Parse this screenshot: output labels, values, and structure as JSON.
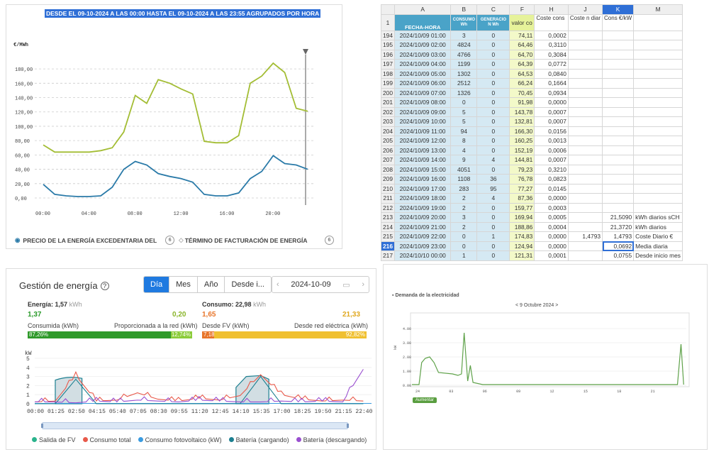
{
  "p1": {
    "title": "DESDE EL 09-10-2024 A LAS 00:00 HASTA EL 09-10-2024 A LAS 23:55 AGRUPADOS POR HORA",
    "unit": "€/MWh",
    "yticks": [
      "180,00",
      "160,00",
      "140,00",
      "120,00",
      "100,00",
      "80,00",
      "60,00",
      "40,00",
      "20,00",
      "0,00"
    ],
    "xticks": [
      "00:00",
      "04:00",
      "08:00",
      "12:00",
      "16:00",
      "20:00"
    ],
    "legend1": "PRECIO DE LA ENERGÍA EXCEDENTARIA DEL",
    "legend1_num": "6",
    "legend2": "TÉRMINO DE FACTURACIÓN DE ENERGÍA",
    "legend2_num": "6",
    "colors": {
      "green": "#a3bd34",
      "blue": "#2a7aa8"
    }
  },
  "chart_data": [
    {
      "type": "line",
      "title": "DESDE EL 09-10-2024 A LAS 00:00 HASTA EL 09-10-2024 A LAS 23:55 AGRUPADOS POR HORA",
      "ylabel": "€/MWh",
      "ylim": [
        0,
        190
      ],
      "x": [
        "00:00",
        "01:00",
        "02:00",
        "03:00",
        "04:00",
        "05:00",
        "06:00",
        "07:00",
        "08:00",
        "09:00",
        "10:00",
        "11:00",
        "12:00",
        "13:00",
        "14:00",
        "15:00",
        "16:00",
        "17:00",
        "18:00",
        "19:00",
        "20:00",
        "21:00",
        "22:00",
        "23:00"
      ],
      "series": [
        {
          "name": "TÉRMINO DE FACTURACIÓN DE ENERGÍA",
          "color": "#a3bd34",
          "values": [
            74,
            64,
            64,
            64,
            64,
            66,
            70,
            92,
            143,
            132,
            165,
            160,
            152,
            145,
            79,
            77,
            77,
            87,
            160,
            170,
            188,
            175,
            125,
            121
          ]
        },
        {
          "name": "PRECIO DE LA ENERGÍA EXCEDENTARIA DEL",
          "color": "#2a7aa8",
          "values": [
            19,
            5,
            3,
            2,
            2,
            3,
            15,
            40,
            51,
            46,
            34,
            30,
            27,
            22,
            5,
            3,
            3,
            7,
            27,
            37,
            59,
            48,
            46,
            40
          ]
        }
      ]
    },
    {
      "type": "line",
      "title": "Gestión de energía",
      "ylabel": "kW",
      "ylim": [
        0,
        5
      ],
      "x_ticks": [
        "00:00",
        "01:25",
        "02:50",
        "04:15",
        "05:40",
        "07:05",
        "08:30",
        "09:55",
        "11:20",
        "12:45",
        "14:10",
        "15:35",
        "17:00",
        "18:25",
        "19:50",
        "21:15",
        "22:40"
      ],
      "series": [
        {
          "name": "Salida de FV",
          "color": "#2ab38c",
          "values": [
            0,
            0,
            0,
            0,
            0,
            0,
            0,
            0,
            0,
            0,
            0,
            0,
            0,
            0,
            0,
            0,
            0
          ]
        },
        {
          "name": "Consumo total",
          "color": "#e8594a",
          "values": [
            0.2,
            0.3,
            3.1,
            0.3,
            0.4,
            1.2,
            0.5,
            0.3,
            0.6,
            0.4,
            0.9,
            3.2,
            1.0,
            0.5,
            0.3,
            0.4,
            0.3
          ]
        },
        {
          "name": "Consumo fotovoltaico (kW)",
          "color": "#3a9be0",
          "values": [
            0,
            0,
            0,
            0,
            0,
            0,
            0,
            0,
            0,
            0,
            0,
            0,
            0,
            0,
            0,
            0,
            0
          ]
        },
        {
          "name": "Batería (cargando)",
          "color": "#1c7f90",
          "values": [
            0,
            0,
            2.7,
            0,
            0,
            0,
            0,
            0,
            0,
            0,
            0,
            3.0,
            0,
            0,
            0,
            0,
            0
          ]
        },
        {
          "name": "Batería (descargando)",
          "color": "#9a4fd0",
          "values": [
            0.2,
            0.2,
            0.1,
            0.3,
            0.2,
            0.4,
            0.3,
            0.2,
            0.4,
            0.3,
            0.2,
            0.2,
            0.3,
            0.2,
            0.3,
            0.2,
            3.8
          ]
        }
      ]
    },
    {
      "type": "line",
      "title": "Demanda de la electricidad",
      "ylabel": "kW",
      "ylim": [
        0,
        4.5
      ],
      "x_ticks": [
        "24",
        "03",
        "06",
        "09",
        "12",
        "15",
        "18",
        "21"
      ],
      "series": [
        {
          "name": "Demanda",
          "color": "#5fa24a",
          "values": [
            0.05,
            1.6,
            2.0,
            0.9,
            0.8,
            3.7,
            0.4,
            0.05,
            0.05,
            0.05,
            0.05,
            0.05,
            0.05,
            0.05,
            0.05,
            2.9
          ]
        }
      ]
    }
  ],
  "sheet": {
    "cols": [
      "A",
      "B",
      "C",
      "F",
      "H",
      "J",
      "K",
      "M"
    ],
    "selected_col": "K",
    "header_row_num": "1",
    "headers": {
      "A": "FECHA-HORA",
      "B": "CONSUMO Wh",
      "C": "GENERACIO N Wh",
      "F": "valor co",
      "H": "Coste cons",
      "J": "Coste n diar",
      "K": "Cons €/kW",
      "M": ""
    },
    "rows": [
      {
        "n": "194",
        "A": "2024/10/09 01:00",
        "B": "3",
        "C": "0",
        "F": "74,11",
        "H": "0,0002",
        "J": "",
        "K": "",
        "M": ""
      },
      {
        "n": "195",
        "A": "2024/10/09 02:00",
        "B": "4824",
        "C": "0",
        "F": "64,46",
        "H": "0,3110",
        "J": "",
        "K": "",
        "M": ""
      },
      {
        "n": "196",
        "A": "2024/10/09 03:00",
        "B": "4766",
        "C": "0",
        "F": "64,70",
        "H": "0,3084",
        "J": "",
        "K": "",
        "M": ""
      },
      {
        "n": "197",
        "A": "2024/10/09 04:00",
        "B": "1199",
        "C": "0",
        "F": "64,39",
        "H": "0,0772",
        "J": "",
        "K": "",
        "M": ""
      },
      {
        "n": "198",
        "A": "2024/10/09 05:00",
        "B": "1302",
        "C": "0",
        "F": "64,53",
        "H": "0,0840",
        "J": "",
        "K": "",
        "M": ""
      },
      {
        "n": "199",
        "A": "2024/10/09 06:00",
        "B": "2512",
        "C": "0",
        "F": "66,24",
        "H": "0,1664",
        "J": "",
        "K": "",
        "M": ""
      },
      {
        "n": "200",
        "A": "2024/10/09 07:00",
        "B": "1326",
        "C": "0",
        "F": "70,45",
        "H": "0,0934",
        "J": "",
        "K": "",
        "M": ""
      },
      {
        "n": "201",
        "A": "2024/10/09 08:00",
        "B": "0",
        "C": "0",
        "F": "91,98",
        "H": "0,0000",
        "J": "",
        "K": "",
        "M": ""
      },
      {
        "n": "202",
        "A": "2024/10/09 09:00",
        "B": "5",
        "C": "0",
        "F": "143,78",
        "H": "0,0007",
        "J": "",
        "K": "",
        "M": ""
      },
      {
        "n": "203",
        "A": "2024/10/09 10:00",
        "B": "5",
        "C": "0",
        "F": "132,81",
        "H": "0,0007",
        "J": "",
        "K": "",
        "M": ""
      },
      {
        "n": "204",
        "A": "2024/10/09 11:00",
        "B": "94",
        "C": "0",
        "F": "166,30",
        "H": "0,0156",
        "J": "",
        "K": "",
        "M": ""
      },
      {
        "n": "205",
        "A": "2024/10/09 12:00",
        "B": "8",
        "C": "0",
        "F": "160,25",
        "H": "0,0013",
        "J": "",
        "K": "",
        "M": ""
      },
      {
        "n": "206",
        "A": "2024/10/09 13:00",
        "B": "4",
        "C": "0",
        "F": "152,19",
        "H": "0,0006",
        "J": "",
        "K": "",
        "M": ""
      },
      {
        "n": "207",
        "A": "2024/10/09 14:00",
        "B": "9",
        "C": "4",
        "F": "144,81",
        "H": "0,0007",
        "J": "",
        "K": "",
        "M": ""
      },
      {
        "n": "208",
        "A": "2024/10/09 15:00",
        "B": "4051",
        "C": "0",
        "F": "79,23",
        "H": "0,3210",
        "J": "",
        "K": "",
        "M": ""
      },
      {
        "n": "209",
        "A": "2024/10/09 16:00",
        "B": "1108",
        "C": "36",
        "F": "76,78",
        "H": "0,0823",
        "J": "",
        "K": "",
        "M": ""
      },
      {
        "n": "210",
        "A": "2024/10/09 17:00",
        "B": "283",
        "C": "95",
        "F": "77,27",
        "H": "0,0145",
        "J": "",
        "K": "",
        "M": ""
      },
      {
        "n": "211",
        "A": "2024/10/09 18:00",
        "B": "2",
        "C": "4",
        "F": "87,36",
        "H": "0,0000",
        "J": "",
        "K": "",
        "M": ""
      },
      {
        "n": "212",
        "A": "2024/10/09 19:00",
        "B": "2",
        "C": "0",
        "F": "159,77",
        "H": "0,0003",
        "J": "",
        "K": "",
        "M": ""
      },
      {
        "n": "213",
        "A": "2024/10/09 20:00",
        "B": "3",
        "C": "0",
        "F": "169,94",
        "H": "0,0005",
        "J": "",
        "K": "21,5090",
        "M": "kWh diarios sCH"
      },
      {
        "n": "214",
        "A": "2024/10/09 21:00",
        "B": "2",
        "C": "0",
        "F": "188,86",
        "H": "0,0004",
        "J": "",
        "K": "21,3720",
        "M": "kWh diarios"
      },
      {
        "n": "215",
        "A": "2024/10/09 22:00",
        "B": "0",
        "C": "1",
        "F": "174,83",
        "H": "0,0000",
        "J": "1,4793",
        "K": "1,4793",
        "M": "Coste Diario €"
      },
      {
        "n": "216",
        "A": "2024/10/09 23:00",
        "B": "0",
        "C": "0",
        "F": "124,94",
        "H": "0,0000",
        "J": "",
        "K": "0,0692",
        "M": "Media diaria"
      },
      {
        "n": "217",
        "A": "2024/10/10 00:00",
        "B": "1",
        "C": "0",
        "F": "121,31",
        "H": "0,0001",
        "J": "",
        "K": "0,0755",
        "M": "Desde inicio mes"
      }
    ],
    "selected_row": "216"
  },
  "p3": {
    "title": "Gestión de energía",
    "help_icon": "?",
    "tabs": [
      "Día",
      "Mes",
      "Año",
      "Desde i..."
    ],
    "active_tab": "Día",
    "date": "2024-10-09",
    "energy_label": "Energía:",
    "energy_value": "1,57",
    "energy_unit": "kWh",
    "consumida_val": "1,37",
    "proporcionada_val": "0,20",
    "consumida_lbl": "Consumida (kWh)",
    "proporcionada_lbl": "Proporcionada a la red (kWh)",
    "energy_bar_left": "87,26%",
    "energy_bar_right": "12,74%",
    "energy_bar_fraction": 0.8726,
    "consumo_label": "Consumo:",
    "consumo_value": "22,98",
    "consumo_unit": "kWh",
    "desdefv_val": "1,65",
    "desdered_val": "21,33",
    "desdefv_lbl": "Desde FV (kWh)",
    "desdered_lbl": "Desde red eléctrica (kWh)",
    "consumo_bar_left": "7,18%",
    "consumo_bar_right": "92,82%",
    "consumo_bar_fraction": 0.0718,
    "yunit": "kW",
    "yticks": [
      "5",
      "4",
      "3",
      "2",
      "1",
      "0"
    ],
    "xticks": [
      "00:00",
      "01:25",
      "02:50",
      "04:15",
      "05:40",
      "07:05",
      "08:30",
      "09:55",
      "11:20",
      "12:45",
      "14:10",
      "15:35",
      "17:00",
      "18:25",
      "19:50",
      "21:15",
      "22:40"
    ],
    "legend": [
      "Salida de FV",
      "Consumo total",
      "Consumo fotovoltaico (kW)",
      "Batería (cargando)",
      "Batería (descargando)"
    ],
    "colors": [
      "#2ab38c",
      "#e8594a",
      "#3a9be0",
      "#1c7f90",
      "#9a4fd0"
    ]
  },
  "p4": {
    "title": "Demanda de la electricidad",
    "date": "< 9 Octubre 2024 >",
    "yticks": [
      "4.00",
      "3.00",
      "2.00",
      "1.00",
      "0.00"
    ],
    "yunit": "kW",
    "xticks": [
      "24",
      "03",
      "06",
      "09",
      "12",
      "15",
      "18",
      "21"
    ],
    "button": "Aumentar",
    "color": "#5fa24a"
  }
}
